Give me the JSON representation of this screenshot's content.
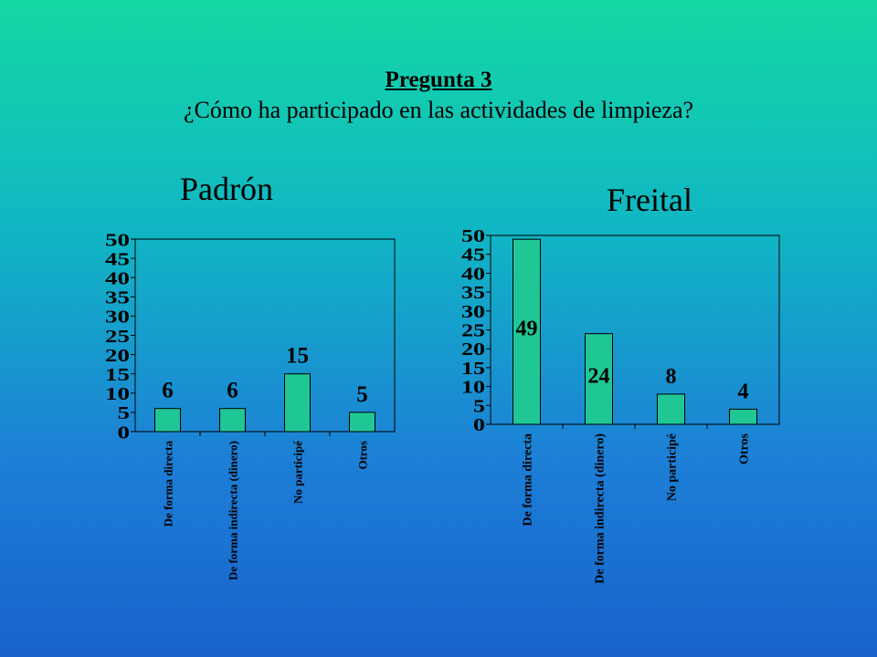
{
  "slide": {
    "heading": "Pregunta 3",
    "question": "¿Cómo ha participado en las actividades de limpieza?"
  },
  "colors": {
    "bar": "#1fc795",
    "frame": "#000000"
  },
  "chart_data": [
    {
      "type": "bar",
      "title": "Padrón",
      "categories": [
        "De forma directa",
        "De forma indirecta (dinero)",
        "No participé",
        "Otros"
      ],
      "values": [
        6,
        6,
        15,
        5
      ],
      "value_labels": [
        "6",
        "6",
        "15",
        "5"
      ],
      "ylim": [
        0,
        50
      ],
      "yticks": [
        "0",
        "5",
        "10",
        "15",
        "20",
        "25",
        "30",
        "35",
        "40",
        "45",
        "50"
      ],
      "xlabel": "",
      "ylabel": "",
      "grid": false,
      "legend": "none"
    },
    {
      "type": "bar",
      "title": "Freital",
      "categories": [
        "De forma directa",
        "De forma indirecta (dinero)",
        "No participé",
        "Otros"
      ],
      "values": [
        49,
        24,
        8,
        4
      ],
      "value_labels": [
        "49",
        "24",
        "8",
        "4"
      ],
      "ylim": [
        0,
        50
      ],
      "yticks": [
        "0",
        "5",
        "10",
        "15",
        "20",
        "25",
        "30",
        "35",
        "40",
        "45",
        "50"
      ],
      "xlabel": "",
      "ylabel": "",
      "grid": false,
      "legend": "none"
    }
  ]
}
